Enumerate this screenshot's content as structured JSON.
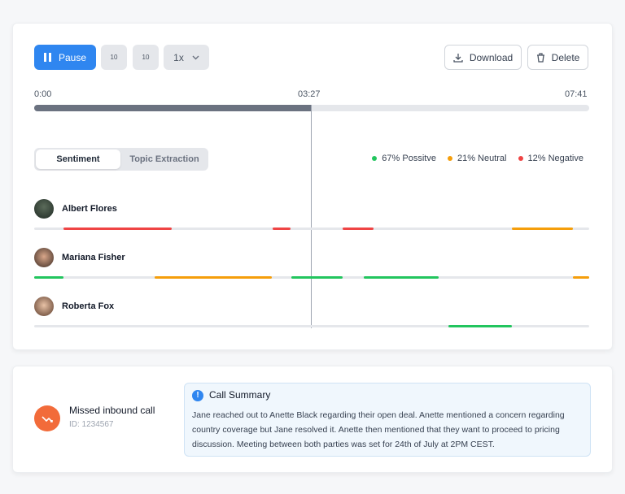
{
  "player": {
    "pause": "Pause",
    "skip_back": "10",
    "skip_forward": "10",
    "speed": "1x",
    "download": "Download",
    "delete": "Delete",
    "time_start": "0:00",
    "time_current": "03:27",
    "time_end": "07:41"
  },
  "tabs": [
    "Sentiment",
    "Topic Extraction"
  ],
  "legend": [
    "67% Possitve",
    "21% Neutral",
    "12% Negative"
  ],
  "speakers": [
    "Albert Flores",
    "Mariana Fisher",
    "Roberta Fox"
  ],
  "call": {
    "title": "Missed inbound call",
    "id": "ID: 1234567"
  },
  "summary": {
    "title": "Call Summary",
    "text": "Jane reached out to Anette Black regarding their open deal. Anette mentioned a concern regarding country coverage but Jane resolved it. Anette then mentioned that they want to proceed to pricing discussion. Meeting between both parties was set for 24th of July at 2PM CEST."
  }
}
